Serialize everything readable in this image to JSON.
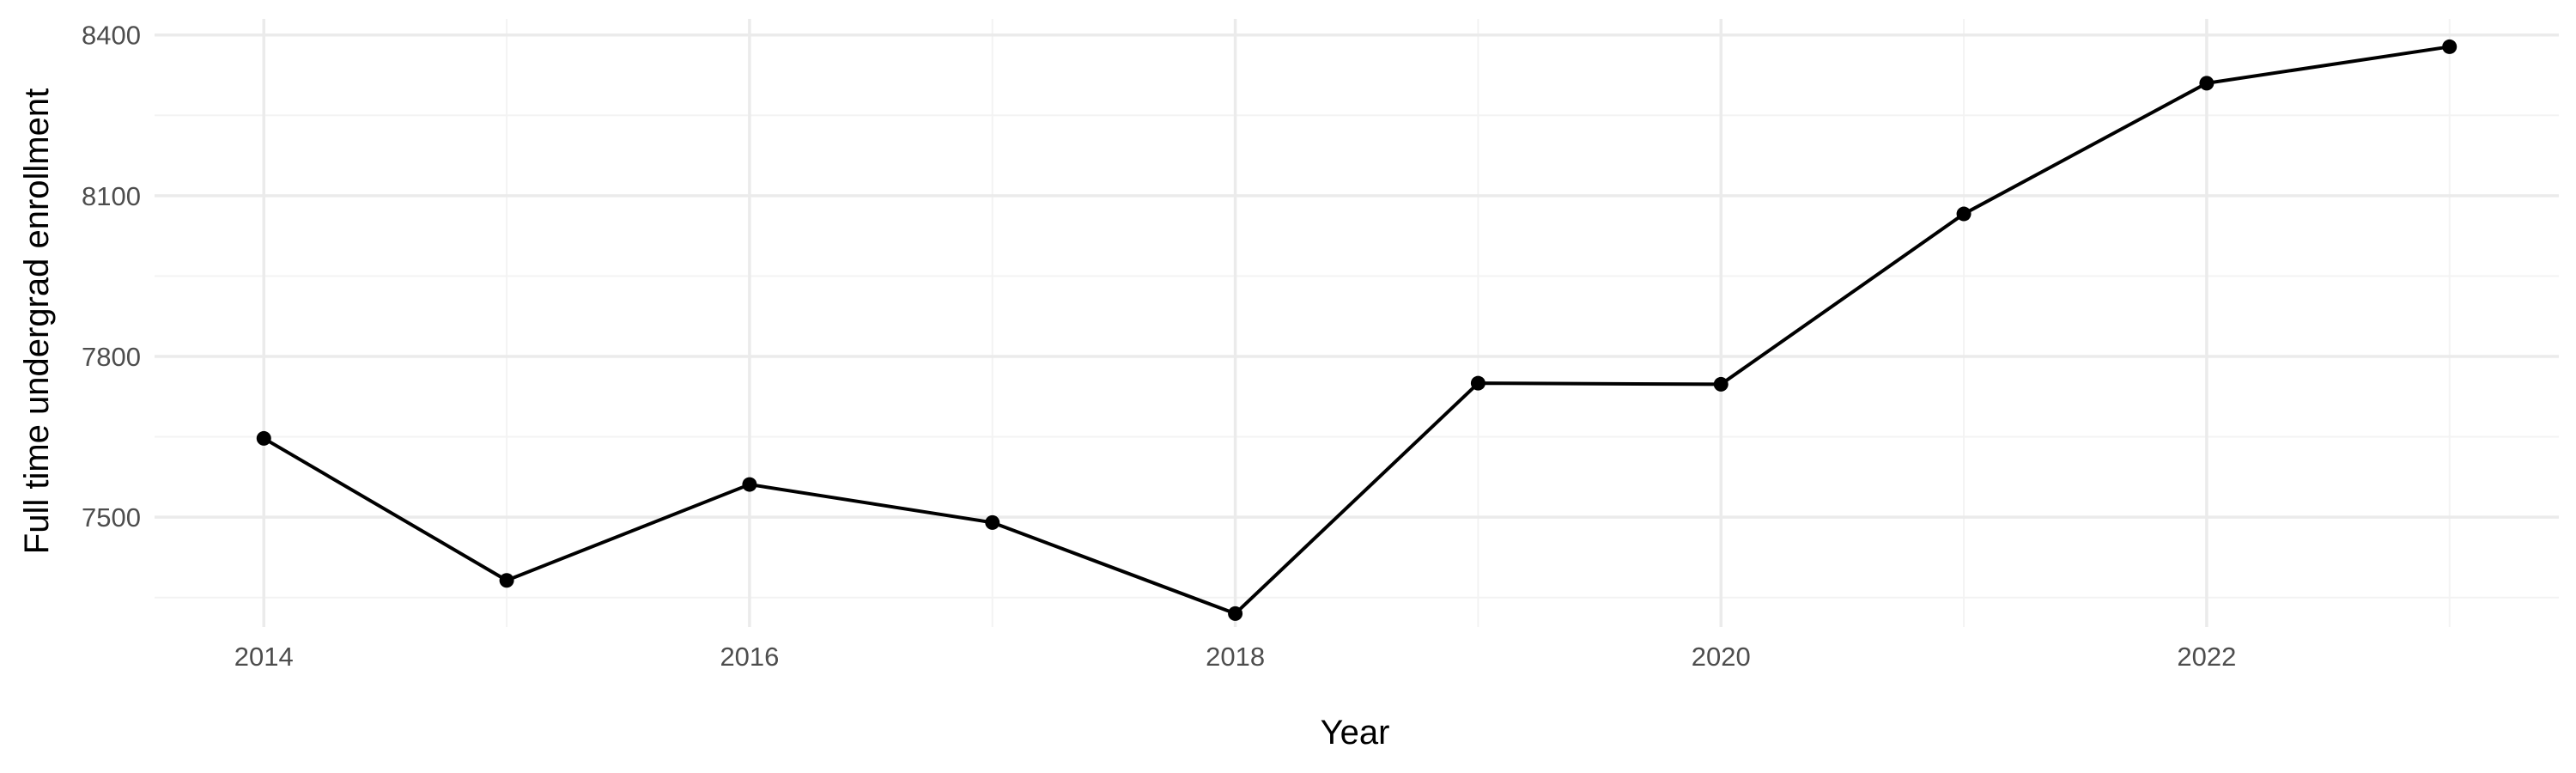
{
  "chart_data": {
    "type": "line",
    "title": "",
    "xlabel": "Year",
    "ylabel": "Full time undergrad enrollment",
    "x": [
      2014,
      2015,
      2016,
      2017,
      2018,
      2019,
      2020,
      2021,
      2022,
      2023
    ],
    "series": [
      {
        "values": [
          7647,
          7382,
          7561,
          7490,
          7320,
          7750,
          7748,
          8066,
          8310,
          8378
        ]
      }
    ],
    "xlim": [
      2013.55,
      2023.45
    ],
    "ylim": [
      7295,
      8430
    ],
    "x_ticks": [
      2014,
      2016,
      2018,
      2020,
      2022
    ],
    "x_tick_labels": [
      "2014",
      "2016",
      "2018",
      "2020",
      "2022"
    ],
    "x_minor_ticks": [
      2015,
      2017,
      2019,
      2021,
      2023
    ],
    "y_ticks": [
      7500,
      7800,
      8100,
      8400
    ],
    "y_tick_labels": [
      "7500",
      "7800",
      "8100",
      "8400"
    ],
    "y_minor_ticks": [
      7350,
      7650,
      7950,
      8250
    ],
    "grid": true,
    "legend": "none",
    "colors": {
      "line": "#000000",
      "point": "#000000",
      "grid": "#ebebeb",
      "background": "#ffffff"
    }
  }
}
